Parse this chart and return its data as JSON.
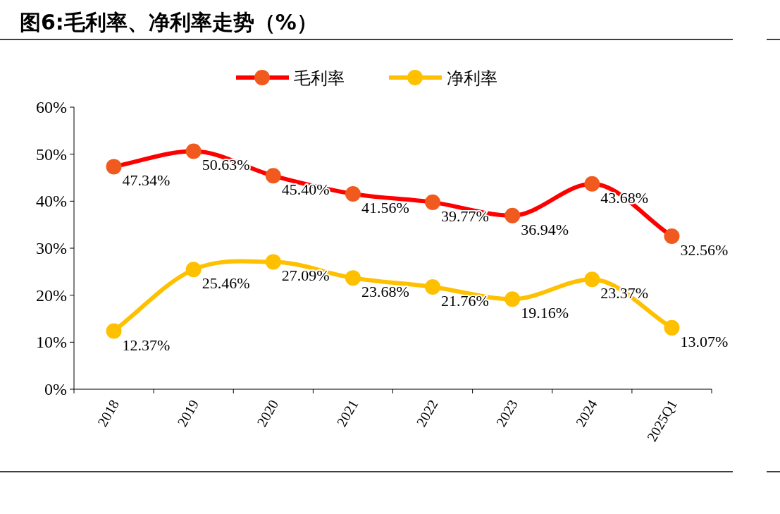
{
  "chart_data": {
    "type": "line",
    "title": "图6:毛利率、净利率走势（%）",
    "categories": [
      "2018",
      "2019",
      "2020",
      "2021",
      "2022",
      "2023",
      "2024",
      "2025Q1"
    ],
    "series": [
      {
        "name": "毛利率",
        "color": "#ff0000",
        "values": [
          47.34,
          50.63,
          45.4,
          41.56,
          39.77,
          36.94,
          43.68,
          32.56
        ],
        "value_labels": [
          "47.34%",
          "50.63%",
          "45.40%",
          "41.56%",
          "39.77%",
          "36.94%",
          "43.68%",
          "32.56%"
        ]
      },
      {
        "name": "净利率",
        "color": "#ffc000",
        "values": [
          12.37,
          25.46,
          27.09,
          23.68,
          21.76,
          19.16,
          23.37,
          13.07
        ],
        "value_labels": [
          "12.37%",
          "25.46%",
          "27.09%",
          "23.68%",
          "21.76%",
          "19.16%",
          "23.37%",
          "13.07%"
        ]
      }
    ],
    "ylim": [
      0,
      60
    ],
    "yticks": [
      {
        "value": 0,
        "label": "0%"
      },
      {
        "value": 10,
        "label": "10%"
      },
      {
        "value": 20,
        "label": "20%"
      },
      {
        "value": 30,
        "label": "30%"
      },
      {
        "value": 40,
        "label": "40%"
      },
      {
        "value": 50,
        "label": "50%"
      },
      {
        "value": 60,
        "label": "60%"
      }
    ],
    "marker": "circle",
    "grid": false,
    "legend": "top"
  }
}
